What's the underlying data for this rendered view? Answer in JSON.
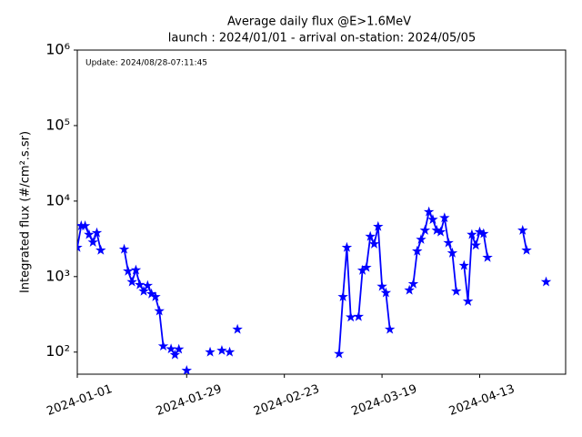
{
  "chart_data": {
    "type": "line",
    "title": "Average daily flux @E>1.6MeV",
    "subtitle": "launch : 2024/01/01 - arrival on-station: 2024/05/05",
    "annotation": "Update: 2024/08/28-07:11:45",
    "ylabel": "Integrated flux (#/cm².s.sr)",
    "log_y": true,
    "marker": "star",
    "x": [
      "2024-01-01",
      "2024-01-02",
      "2024-01-03",
      "2024-01-04",
      "2024-01-05",
      "2024-01-06",
      "2024-01-07",
      "2024-01-08",
      "2024-01-13",
      "2024-01-14",
      "2024-01-15",
      "2024-01-16",
      "2024-01-17",
      "2024-01-18",
      "2024-01-19",
      "2024-01-20",
      "2024-01-21",
      "2024-01-22",
      "2024-01-23",
      "2024-01-24",
      "2024-01-25",
      "2024-01-26",
      "2024-01-27",
      "2024-01-28",
      "2024-01-29",
      "2024-01-30",
      "2024-02-04",
      "2024-02-05",
      "2024-02-07",
      "2024-02-08",
      "2024-02-09",
      "2024-02-10",
      "2024-02-11",
      "2024-02-12",
      "2024-03-08",
      "2024-03-09",
      "2024-03-10",
      "2024-03-11",
      "2024-03-12",
      "2024-03-13",
      "2024-03-14",
      "2024-03-15",
      "2024-03-16",
      "2024-03-17",
      "2024-03-18",
      "2024-03-19",
      "2024-03-20",
      "2024-03-21",
      "2024-03-22",
      "2024-03-26",
      "2024-03-27",
      "2024-03-28",
      "2024-03-29",
      "2024-03-30",
      "2024-03-31",
      "2024-04-01",
      "2024-04-02",
      "2024-04-03",
      "2024-04-04",
      "2024-04-05",
      "2024-04-06",
      "2024-04-07",
      "2024-04-08",
      "2024-04-09",
      "2024-04-10",
      "2024-04-11",
      "2024-04-12",
      "2024-04-13",
      "2024-04-14",
      "2024-04-15",
      "2024-04-16",
      "2024-04-24",
      "2024-04-25",
      "2024-04-26",
      "2024-04-30"
    ],
    "series": [
      {
        "color": "#0000ff",
        "values": [
          2430,
          4700,
          4700,
          3600,
          2850,
          3800,
          2230,
          null,
          2300,
          1180,
          850,
          1220,
          780,
          640,
          760,
          590,
          540,
          350,
          120,
          null,
          110,
          92,
          109,
          null,
          57,
          null,
          100,
          null,
          105,
          null,
          100,
          null,
          200,
          null,
          95,
          540,
          2430,
          290,
          null,
          295,
          1210,
          1320,
          3400,
          2700,
          4600,
          740,
          610,
          200,
          null,
          660,
          800,
          2170,
          3100,
          4100,
          7200,
          5700,
          4100,
          3900,
          6000,
          2800,
          2050,
          640,
          null,
          1400,
          470,
          3600,
          2600,
          3900,
          3700,
          1790,
          null,
          4100,
          2230,
          null,
          850
        ]
      }
    ],
    "xlim": [
      "2024-01-01",
      "2024-05-05"
    ],
    "xticks": [
      "2024-01-01",
      "2024-01-29",
      "2024-02-23",
      "2024-03-19",
      "2024-04-13"
    ],
    "ylim": [
      51,
      1000000
    ],
    "yticks": [
      {
        "value": 100,
        "label": "10²"
      },
      {
        "value": 1000,
        "label": "10³"
      },
      {
        "value": 10000,
        "label": "10⁴"
      },
      {
        "value": 100000,
        "label": "10⁵"
      },
      {
        "value": 1000000,
        "label": "10⁶"
      }
    ]
  }
}
